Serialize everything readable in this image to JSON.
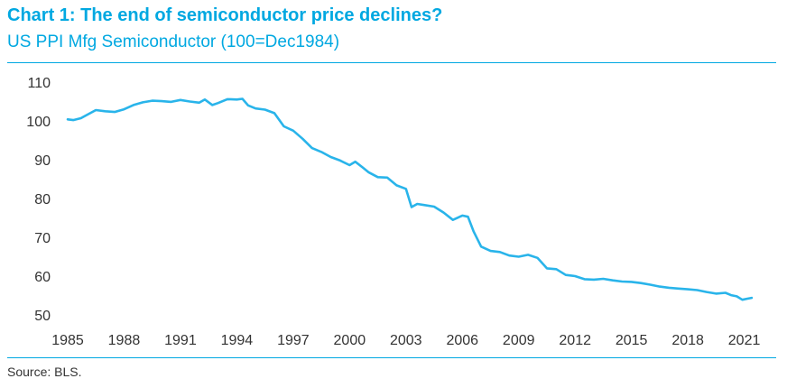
{
  "header": {
    "title": "Chart 1: The end of semiconductor price declines?",
    "subtitle": "US PPI Mfg Semiconductor (100=Dec1984)"
  },
  "footer": {
    "source": "Source: BLS."
  },
  "colors": {
    "accent": "#00a8e1",
    "line": "#29b4ea",
    "text": "#333333"
  },
  "chart_data": {
    "type": "line",
    "title": "Chart 1: The end of semiconductor price declines?",
    "subtitle": "US PPI Mfg Semiconductor (100=Dec1984)",
    "xlabel": "",
    "ylabel": "",
    "xlim": [
      1985,
      2021.5
    ],
    "ylim": [
      50,
      110
    ],
    "grid": false,
    "legend": "none",
    "x_ticks": [
      "1985",
      "1988",
      "1991",
      "1994",
      "1997",
      "2000",
      "2003",
      "2006",
      "2009",
      "2012",
      "2015",
      "2018",
      "2021"
    ],
    "y_ticks": [
      "50",
      "60",
      "70",
      "80",
      "90",
      "100",
      "110"
    ],
    "series": [
      {
        "name": "US PPI Mfg Semiconductor",
        "x": [
          1985.0,
          1985.3,
          1985.7,
          1986.0,
          1986.5,
          1987.0,
          1987.5,
          1988.0,
          1988.5,
          1989.0,
          1989.5,
          1990.0,
          1990.5,
          1991.0,
          1991.5,
          1992.0,
          1992.3,
          1992.7,
          1993.0,
          1993.5,
          1994.0,
          1994.3,
          1994.6,
          1995.0,
          1995.5,
          1996.0,
          1996.5,
          1997.0,
          1997.5,
          1998.0,
          1998.5,
          1999.0,
          1999.5,
          2000.0,
          2000.3,
          2000.7,
          2001.0,
          2001.5,
          2002.0,
          2002.5,
          2003.0,
          2003.3,
          2003.6,
          2004.0,
          2004.5,
          2005.0,
          2005.5,
          2006.0,
          2006.3,
          2006.6,
          2007.0,
          2007.5,
          2008.0,
          2008.5,
          2009.0,
          2009.5,
          2010.0,
          2010.5,
          2011.0,
          2011.5,
          2012.0,
          2012.5,
          2013.0,
          2013.5,
          2014.0,
          2014.5,
          2015.0,
          2015.5,
          2016.0,
          2016.5,
          2017.0,
          2017.5,
          2018.0,
          2018.5,
          2019.0,
          2019.5,
          2020.0,
          2020.3,
          2020.6,
          2020.9,
          2021.2,
          2021.4
        ],
        "values": [
          100.4,
          100.2,
          100.7,
          101.5,
          102.8,
          102.5,
          102.3,
          103.0,
          104.1,
          104.8,
          105.2,
          105.1,
          104.9,
          105.4,
          105.0,
          104.7,
          105.5,
          104.1,
          104.6,
          105.6,
          105.5,
          105.7,
          104.0,
          103.2,
          102.9,
          102.0,
          98.6,
          97.5,
          95.4,
          93.0,
          92.0,
          90.7,
          89.8,
          88.6,
          89.5,
          88.0,
          86.8,
          85.5,
          85.4,
          83.4,
          82.5,
          77.8,
          78.6,
          78.3,
          77.9,
          76.4,
          74.5,
          75.6,
          75.3,
          71.5,
          67.6,
          66.5,
          66.2,
          65.3,
          65.0,
          65.5,
          64.7,
          62.0,
          61.8,
          60.3,
          60.0,
          59.2,
          59.1,
          59.3,
          58.9,
          58.6,
          58.5,
          58.2,
          57.8,
          57.3,
          57.0,
          56.8,
          56.6,
          56.4,
          55.9,
          55.5,
          55.7,
          55.1,
          54.8,
          53.9,
          54.2,
          54.4
        ]
      }
    ]
  }
}
